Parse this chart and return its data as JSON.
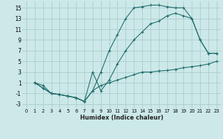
{
  "xlabel": "Humidex (Indice chaleur)",
  "bg_color": "#cce8e8",
  "grid_color": "#aacccc",
  "line_color": "#1e6b6b",
  "xlim": [
    -0.5,
    23.5
  ],
  "ylim": [
    -3.8,
    16.2
  ],
  "xticks": [
    0,
    1,
    2,
    3,
    4,
    5,
    6,
    7,
    8,
    9,
    10,
    11,
    12,
    13,
    14,
    15,
    16,
    17,
    18,
    19,
    20,
    21,
    22,
    23
  ],
  "yticks": [
    -3,
    -1,
    1,
    3,
    5,
    7,
    9,
    11,
    13,
    15
  ],
  "curve1_x": [
    1,
    2,
    3,
    4,
    5,
    6,
    7,
    8,
    9,
    10,
    11,
    12,
    13,
    14,
    15,
    16,
    17,
    18,
    19,
    20,
    21,
    22,
    23
  ],
  "curve1_y": [
    1,
    0,
    -1,
    -1.2,
    -1.5,
    -1.8,
    -2.5,
    -0.5,
    3,
    7,
    10,
    13,
    15,
    15.2,
    15.5,
    15.5,
    15.2,
    15.0,
    15.0,
    13,
    9,
    6.5,
    6.5
  ],
  "curve2_x": [
    1,
    2,
    3,
    4,
    5,
    6,
    7,
    8,
    9,
    10,
    11,
    12,
    13,
    14,
    15,
    16,
    17,
    18,
    19,
    20,
    21,
    22,
    23
  ],
  "curve2_y": [
    1,
    0,
    -1,
    -1.2,
    -1.5,
    -1.8,
    -2.5,
    3,
    -0.5,
    1.5,
    4.5,
    7,
    9,
    10.5,
    12,
    12.5,
    13.5,
    14.0,
    13.5,
    13.0,
    9,
    6.5,
    6.5
  ],
  "curve3_x": [
    1,
    2,
    3,
    4,
    5,
    6,
    7,
    8,
    9,
    10,
    11,
    12,
    13,
    14,
    15,
    16,
    17,
    18,
    19,
    20,
    21,
    22,
    23
  ],
  "curve3_y": [
    1,
    0.5,
    -1,
    -1.2,
    -1.5,
    -1.8,
    -2.5,
    -0.5,
    0.5,
    1.0,
    1.5,
    2.0,
    2.5,
    3.0,
    3.0,
    3.2,
    3.3,
    3.5,
    3.8,
    4.0,
    4.2,
    4.5,
    5.0
  ]
}
